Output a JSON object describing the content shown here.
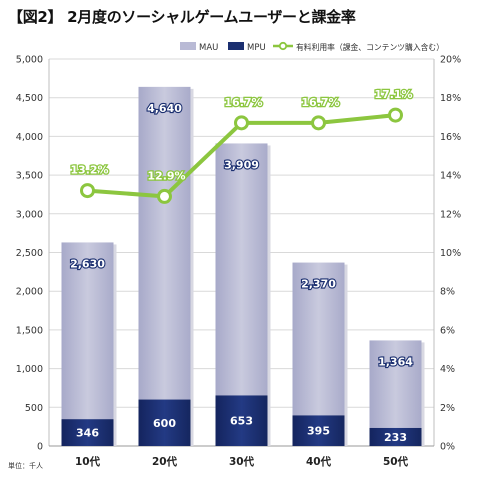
{
  "title": "【図2】 2月度のソーシャルゲームユーザーと課金率",
  "unit_note": "単位：千人",
  "chart_data": {
    "type": "bar",
    "categories": [
      "10代",
      "20代",
      "30代",
      "40代",
      "50代"
    ],
    "series": [
      {
        "name": "MAU",
        "kind": "bar",
        "values": [
          2630,
          4640,
          3909,
          2370,
          1364
        ],
        "color": "#b9bad5"
      },
      {
        "name": "MPU",
        "kind": "bar",
        "values": [
          346,
          600,
          653,
          395,
          233
        ],
        "color": "#1b2f70"
      },
      {
        "name": "有料利用率（課金、コンテンツ購入含む）",
        "kind": "line",
        "axis": "right",
        "values": [
          13.2,
          12.9,
          16.7,
          16.7,
          17.1
        ],
        "color": "#8cc63f"
      }
    ],
    "y_left": {
      "lim": [
        0,
        5000
      ],
      "ticks": [
        0,
        500,
        1000,
        1500,
        2000,
        2500,
        3000,
        3500,
        4000,
        4500,
        5000
      ],
      "tick_labels": [
        "0",
        "500",
        "1,000",
        "1,500",
        "2,000",
        "2,500",
        "3,000",
        "3,500",
        "4,000",
        "4,500",
        "5,000"
      ]
    },
    "y_right": {
      "lim": [
        0,
        20
      ],
      "ticks": [
        0,
        2,
        4,
        6,
        8,
        10,
        12,
        14,
        16,
        18,
        20
      ],
      "tick_labels": [
        "0%",
        "2%",
        "4%",
        "6%",
        "8%",
        "10%",
        "12%",
        "14%",
        "16%",
        "18%",
        "20%"
      ]
    },
    "mau_labels": [
      "2,630",
      "4,640",
      "3,909",
      "2,370",
      "1,364"
    ],
    "mpu_labels": [
      "346",
      "600",
      "653",
      "395",
      "233"
    ],
    "rate_labels": [
      "13.2%",
      "12.9%",
      "16.7%",
      "16.7%",
      "17.1%"
    ],
    "legend_position": "top-right",
    "grid": true
  }
}
